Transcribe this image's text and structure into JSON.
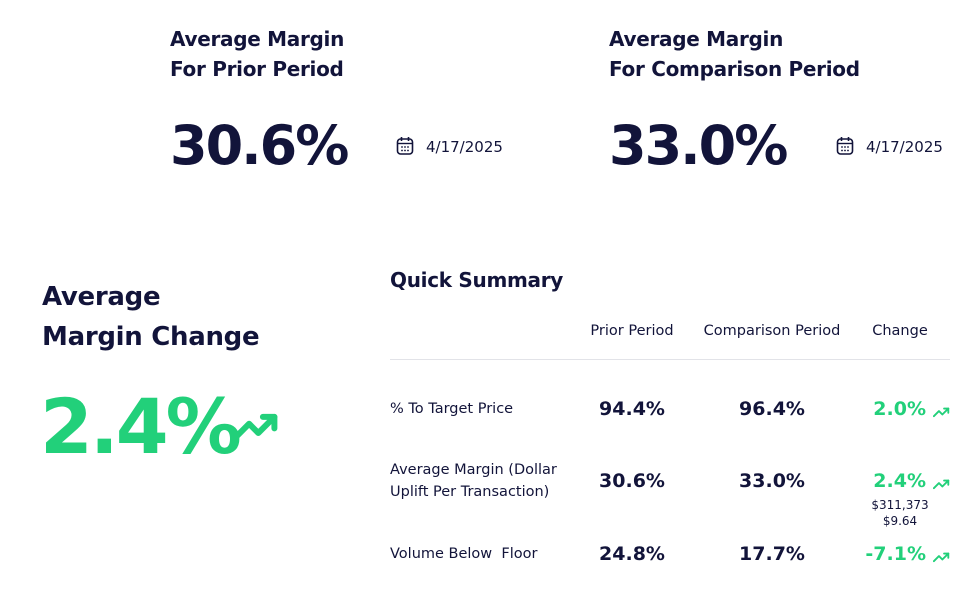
{
  "prior": {
    "title": [
      "Average Margin",
      "For Prior Period"
    ],
    "value": "30.6%",
    "date": "4/17/2025"
  },
  "comparison": {
    "title": [
      "Average Margin",
      "For Comparison Period"
    ],
    "value": "33.0%",
    "date": "4/17/2025"
  },
  "change": {
    "title": [
      "Average",
      "Margin Change"
    ],
    "value": "2.4%"
  },
  "summary": {
    "title": "Quick Summary",
    "columns": [
      "Prior Period",
      "Comparison Period",
      "Change"
    ],
    "rows": [
      {
        "label": [
          "% To Target Price"
        ],
        "prior": "94.4%",
        "comparison": "96.4%",
        "change": "2.0%"
      },
      {
        "label": [
          "Average Margin (Dollar",
          "Uplift Per Transaction)"
        ],
        "prior": "30.6%",
        "comparison": "33.0%",
        "change": "2.4%",
        "notes": [
          "$311,373",
          "$9.64"
        ]
      },
      {
        "label": [
          "Volume Below  Floor"
        ],
        "prior": "24.8%",
        "comparison": "17.7%",
        "change": "-7.1%"
      }
    ]
  }
}
